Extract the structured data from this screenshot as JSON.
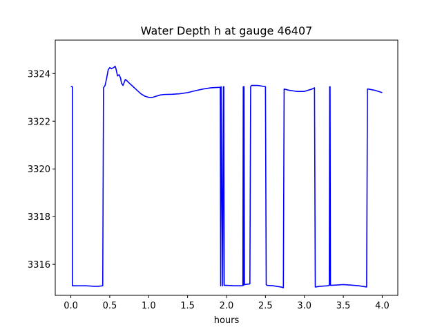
{
  "chart_data": {
    "type": "line",
    "title": "Water Depth h at gauge 46407",
    "xlabel": "hours",
    "ylabel": "",
    "xlim": [
      -0.2,
      4.2
    ],
    "ylim": [
      3314.7,
      3325.4
    ],
    "x_ticks": [
      0.0,
      0.5,
      1.0,
      1.5,
      2.0,
      2.5,
      3.0,
      3.5,
      4.0
    ],
    "x_tick_labels": [
      "0.0",
      "0.5",
      "1.0",
      "1.5",
      "2.0",
      "2.5",
      "3.0",
      "3.5",
      "4.0"
    ],
    "y_ticks": [
      3316,
      3318,
      3320,
      3322,
      3324
    ],
    "y_tick_labels": [
      "3316",
      "3318",
      "3320",
      "3322",
      "3324"
    ],
    "grid": false,
    "series": [
      {
        "color": "#0000ff",
        "x": [
          0.0,
          0.02,
          0.02,
          0.1,
          0.2,
          0.3,
          0.35,
          0.41,
          0.42,
          0.44,
          0.46,
          0.48,
          0.5,
          0.52,
          0.55,
          0.57,
          0.58,
          0.6,
          0.62,
          0.64,
          0.65,
          0.67,
          0.7,
          0.72,
          0.75,
          0.8,
          0.85,
          0.9,
          0.95,
          1.0,
          1.05,
          1.1,
          1.15,
          1.2,
          1.3,
          1.4,
          1.5,
          1.6,
          1.7,
          1.8,
          1.9,
          1.92,
          1.925,
          1.93,
          1.95,
          1.96,
          1.965,
          1.97,
          2.0,
          2.1,
          2.2,
          2.21,
          2.215,
          2.22,
          2.222,
          2.225,
          2.23,
          2.3,
          2.31,
          2.32,
          2.35,
          2.4,
          2.5,
          2.51,
          2.52,
          2.6,
          2.7,
          2.73,
          2.74,
          2.8,
          2.9,
          3.0,
          3.1,
          3.13,
          3.14,
          3.2,
          3.3,
          3.32,
          3.325,
          3.33,
          3.335,
          3.34,
          3.4,
          3.5,
          3.6,
          3.7,
          3.8,
          3.81,
          3.82,
          3.9,
          4.0
        ],
        "y": [
          3323.45,
          3323.45,
          3315.1,
          3315.1,
          3315.1,
          3315.08,
          3315.08,
          3315.1,
          3323.4,
          3323.5,
          3323.8,
          3324.15,
          3324.25,
          3324.2,
          3324.25,
          3324.3,
          3324.2,
          3323.9,
          3323.95,
          3323.8,
          3323.6,
          3323.5,
          3323.75,
          3323.7,
          3323.6,
          3323.45,
          3323.3,
          3323.15,
          3323.05,
          3323.0,
          3323.0,
          3323.05,
          3323.1,
          3323.12,
          3323.13,
          3323.15,
          3323.2,
          3323.28,
          3323.35,
          3323.4,
          3323.42,
          3323.42,
          3315.1,
          3323.45,
          3315.1,
          3323.45,
          3323.45,
          3315.12,
          3315.12,
          3315.1,
          3315.1,
          3315.12,
          3323.45,
          3315.12,
          3323.45,
          3323.45,
          3315.15,
          3315.18,
          3323.45,
          3323.5,
          3323.5,
          3323.5,
          3323.45,
          3315.15,
          3315.12,
          3315.1,
          3315.05,
          3315.02,
          3323.35,
          3323.3,
          3323.25,
          3323.25,
          3323.35,
          3323.4,
          3315.05,
          3315.08,
          3315.1,
          3315.12,
          3323.45,
          3323.45,
          3315.12,
          3315.12,
          3315.13,
          3315.15,
          3315.13,
          3315.1,
          3315.05,
          3323.35,
          3323.35,
          3323.3,
          3323.2
        ]
      }
    ]
  }
}
